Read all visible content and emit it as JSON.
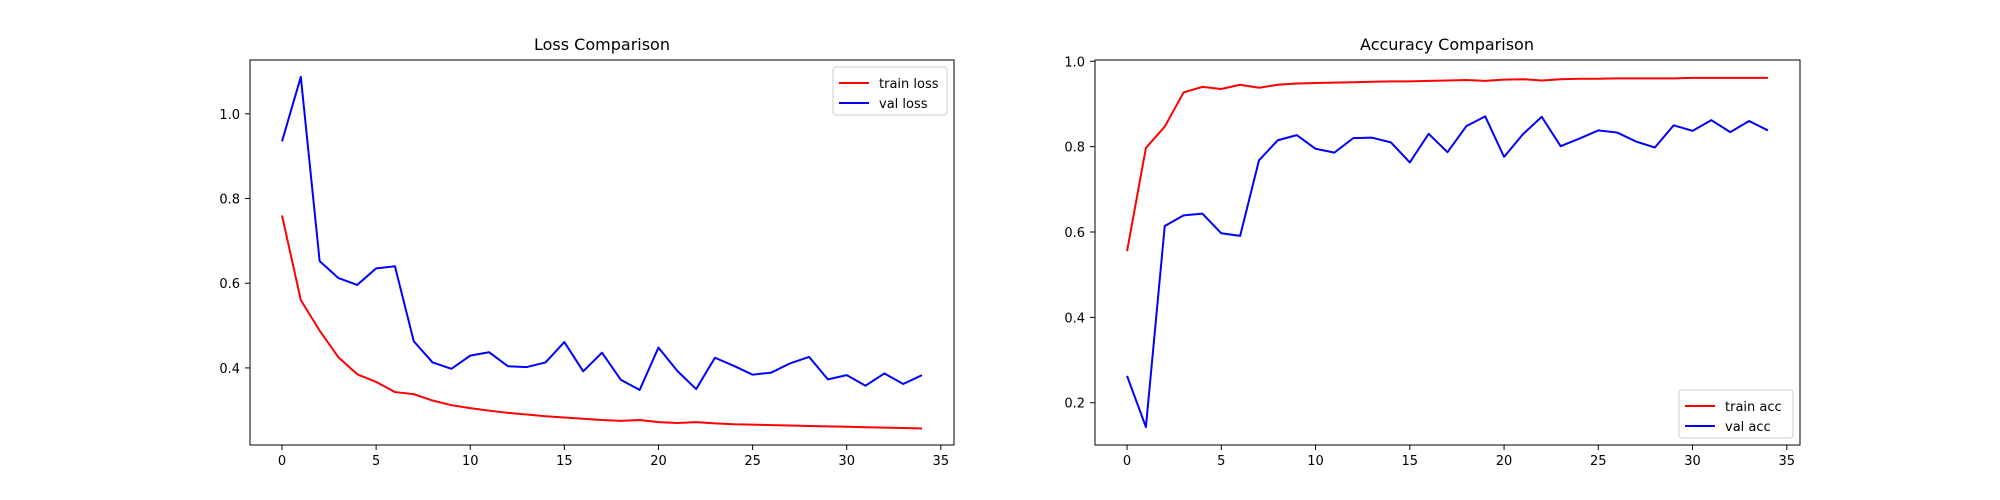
{
  "chart_data": [
    {
      "type": "line",
      "title": "Loss Comparison",
      "xlabel": "",
      "ylabel": "",
      "xlim": [
        -1.7,
        35.7
      ],
      "ylim": [
        0.218,
        1.127
      ],
      "xticks": [
        0,
        5,
        10,
        15,
        20,
        25,
        30,
        35
      ],
      "yticks": [
        0.4,
        0.6,
        0.8,
        1.0
      ],
      "ytick_format": 1,
      "grid": false,
      "legend": "top-right",
      "series": [
        {
          "name": "train loss",
          "color": "#ff0000",
          "x": [
            0,
            1,
            2,
            3,
            4,
            5,
            6,
            7,
            8,
            9,
            10,
            11,
            12,
            13,
            14,
            15,
            16,
            17,
            18,
            19,
            20,
            21,
            22,
            23,
            24,
            25,
            26,
            27,
            28,
            29,
            30,
            31,
            32,
            33,
            34
          ],
          "values": [
            0.76,
            0.56,
            0.488,
            0.425,
            0.385,
            0.367,
            0.343,
            0.338,
            0.323,
            0.312,
            0.305,
            0.299,
            0.294,
            0.29,
            0.286,
            0.283,
            0.28,
            0.277,
            0.275,
            0.277,
            0.272,
            0.27,
            0.272,
            0.269,
            0.267,
            0.266,
            0.265,
            0.264,
            0.263,
            0.262,
            0.261,
            0.26,
            0.259,
            0.258,
            0.257
          ]
        },
        {
          "name": "val loss",
          "color": "#0000ff",
          "x": [
            0,
            1,
            2,
            3,
            4,
            5,
            6,
            7,
            8,
            9,
            10,
            11,
            12,
            13,
            14,
            15,
            16,
            17,
            18,
            19,
            20,
            21,
            22,
            23,
            24,
            25,
            26,
            27,
            28,
            29,
            30,
            31,
            32,
            33,
            34
          ],
          "values": [
            0.935,
            1.087,
            0.652,
            0.612,
            0.596,
            0.635,
            0.64,
            0.463,
            0.413,
            0.398,
            0.429,
            0.437,
            0.404,
            0.402,
            0.413,
            0.461,
            0.392,
            0.436,
            0.372,
            0.348,
            0.448,
            0.393,
            0.35,
            0.424,
            0.405,
            0.384,
            0.389,
            0.411,
            0.426,
            0.373,
            0.383,
            0.358,
            0.387,
            0.362,
            0.383
          ]
        }
      ]
    },
    {
      "type": "line",
      "title": "Accuracy Comparison",
      "xlabel": "",
      "ylabel": "",
      "xlim": [
        -1.7,
        35.7
      ],
      "ylim": [
        0.101,
        1.003
      ],
      "xticks": [
        0,
        5,
        10,
        15,
        20,
        25,
        30,
        35
      ],
      "yticks": [
        0.2,
        0.4,
        0.6,
        0.8,
        1.0
      ],
      "ytick_format": 1,
      "grid": false,
      "legend": "bottom-right",
      "series": [
        {
          "name": "train acc",
          "color": "#ff0000",
          "x": [
            0,
            1,
            2,
            3,
            4,
            5,
            6,
            7,
            8,
            9,
            10,
            11,
            12,
            13,
            14,
            15,
            16,
            17,
            18,
            19,
            20,
            21,
            22,
            23,
            24,
            25,
            26,
            27,
            28,
            29,
            30,
            31,
            32,
            33,
            34
          ],
          "values": [
            0.555,
            0.797,
            0.847,
            0.927,
            0.94,
            0.935,
            0.945,
            0.938,
            0.945,
            0.948,
            0.949,
            0.95,
            0.951,
            0.952,
            0.953,
            0.953,
            0.954,
            0.955,
            0.956,
            0.954,
            0.957,
            0.958,
            0.955,
            0.958,
            0.959,
            0.959,
            0.96,
            0.96,
            0.96,
            0.96,
            0.961,
            0.961,
            0.961,
            0.961,
            0.961
          ]
        },
        {
          "name": "val acc",
          "color": "#0000ff",
          "x": [
            0,
            1,
            2,
            3,
            4,
            5,
            6,
            7,
            8,
            9,
            10,
            11,
            12,
            13,
            14,
            15,
            16,
            17,
            18,
            19,
            20,
            21,
            22,
            23,
            24,
            25,
            26,
            27,
            28,
            29,
            30,
            31,
            32,
            33,
            34
          ],
          "values": [
            0.263,
            0.143,
            0.614,
            0.639,
            0.643,
            0.597,
            0.591,
            0.768,
            0.815,
            0.827,
            0.795,
            0.786,
            0.82,
            0.821,
            0.81,
            0.763,
            0.83,
            0.787,
            0.848,
            0.871,
            0.776,
            0.829,
            0.87,
            0.801,
            0.819,
            0.838,
            0.833,
            0.812,
            0.798,
            0.85,
            0.837,
            0.862,
            0.834,
            0.86,
            0.838
          ]
        }
      ]
    }
  ]
}
